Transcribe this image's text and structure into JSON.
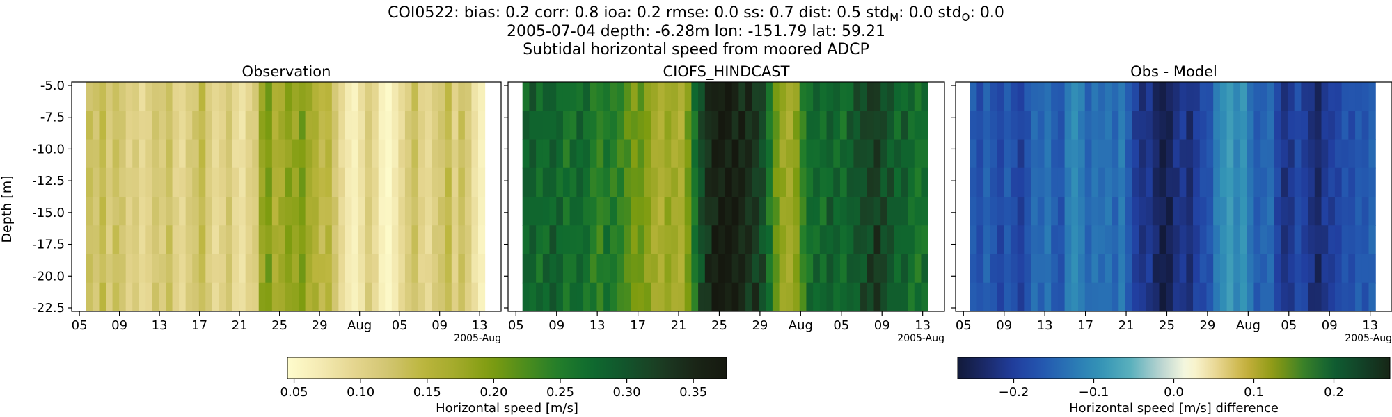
{
  "figure": {
    "title_line1": "COI0522: bias: 0.2  corr: 0.8  ioa: 0.2  rmse: 0.0  ss: 0.7  dist: 0.5  std",
    "title_sub_m": "M",
    "title_mid": ": 0.0  std",
    "title_sub_o": "O",
    "title_end": ": 0.0",
    "title_line2": "2005-07-04 depth: -6.28m lon: -151.79 lat: 59.21",
    "title_line3": "Subtidal horizontal speed from moored ADCP"
  },
  "chart_data": [
    {
      "type": "heatmap",
      "title": "Observation",
      "ylabel": "Depth [m]",
      "x_tick_labels": [
        "05",
        "09",
        "13",
        "17",
        "21",
        "25",
        "29",
        "Aug",
        "05",
        "09",
        "13"
      ],
      "x_offset_label": "2005-Aug",
      "y_tick_labels": [
        "-5.0",
        "-7.5",
        "-10.0",
        "-12.5",
        "-15.0",
        "-17.5",
        "-20.0",
        "-22.5"
      ],
      "ylim": [
        -22.5,
        -5.0
      ],
      "colormap": "speed",
      "colorbar": {
        "ticks": [
          "0.05",
          "0.10",
          "0.15",
          "0.20",
          "0.25",
          "0.30",
          "0.35"
        ],
        "range": [
          0.045,
          0.375
        ],
        "label": "Horizontal speed [m/s]"
      },
      "time_profile": [
        0.13,
        0.12,
        0.14,
        0.11,
        0.13,
        0.12,
        0.1,
        0.11,
        0.09,
        0.1,
        0.12,
        0.11,
        0.13,
        0.1,
        0.09,
        0.11,
        0.12,
        0.14,
        0.11,
        0.09,
        0.1,
        0.12,
        0.09,
        0.08,
        0.1,
        0.11,
        0.18,
        0.2,
        0.16,
        0.17,
        0.19,
        0.18,
        0.2,
        0.17,
        0.16,
        0.14,
        0.15,
        0.12,
        0.09,
        0.07,
        0.06,
        0.08,
        0.11,
        0.09,
        0.06,
        0.05,
        0.07,
        0.09,
        0.11,
        0.13,
        0.1,
        0.09,
        0.11,
        0.12,
        0.14,
        0.1,
        0.13,
        0.11,
        0.08,
        0.06
      ]
    },
    {
      "type": "heatmap",
      "title": "CIOFS_HINDCAST",
      "x_tick_labels": [
        "05",
        "09",
        "13",
        "17",
        "21",
        "25",
        "29",
        "Aug",
        "05",
        "09",
        "13"
      ],
      "x_offset_label": "2005-Aug",
      "colormap": "speed",
      "time_profile": [
        0.28,
        0.29,
        0.27,
        0.28,
        0.29,
        0.28,
        0.26,
        0.27,
        0.28,
        0.27,
        0.25,
        0.24,
        0.26,
        0.25,
        0.24,
        0.22,
        0.2,
        0.21,
        0.19,
        0.17,
        0.16,
        0.18,
        0.17,
        0.16,
        0.2,
        0.26,
        0.31,
        0.34,
        0.36,
        0.37,
        0.37,
        0.36,
        0.35,
        0.34,
        0.33,
        0.31,
        0.26,
        0.21,
        0.18,
        0.17,
        0.19,
        0.24,
        0.27,
        0.28,
        0.27,
        0.29,
        0.28,
        0.27,
        0.29,
        0.3,
        0.31,
        0.32,
        0.33,
        0.31,
        0.3,
        0.28,
        0.29,
        0.27,
        0.26,
        0.27
      ]
    },
    {
      "type": "heatmap",
      "title": "Obs - Model",
      "x_tick_labels": [
        "05",
        "09",
        "13",
        "17",
        "21",
        "25",
        "29",
        "Aug",
        "05",
        "09",
        "13"
      ],
      "x_offset_label": "2005-Aug",
      "colormap": "delta",
      "colorbar": {
        "ticks": [
          "−0.2",
          "−0.1",
          "0.0",
          "0.1",
          "0.2"
        ],
        "tick_values": [
          -0.2,
          -0.1,
          0.0,
          0.1,
          0.2
        ],
        "range": [
          -0.27,
          0.27
        ],
        "label": "Horizontal speed [m/s] difference"
      },
      "time_profile": [
        -0.16,
        -0.18,
        -0.15,
        -0.17,
        -0.19,
        -0.16,
        -0.18,
        -0.2,
        -0.17,
        -0.14,
        -0.15,
        -0.13,
        -0.16,
        -0.17,
        -0.12,
        -0.1,
        -0.12,
        -0.15,
        -0.13,
        -0.14,
        -0.13,
        -0.15,
        -0.12,
        -0.16,
        -0.2,
        -0.22,
        -0.21,
        -0.24,
        -0.26,
        -0.25,
        -0.22,
        -0.21,
        -0.23,
        -0.2,
        -0.18,
        -0.17,
        -0.12,
        -0.1,
        -0.08,
        -0.11,
        -0.09,
        -0.13,
        -0.16,
        -0.15,
        -0.14,
        -0.19,
        -0.22,
        -0.21,
        -0.18,
        -0.2,
        -0.22,
        -0.24,
        -0.21,
        -0.2,
        -0.19,
        -0.17,
        -0.18,
        -0.16,
        -0.17,
        -0.15
      ]
    }
  ]
}
